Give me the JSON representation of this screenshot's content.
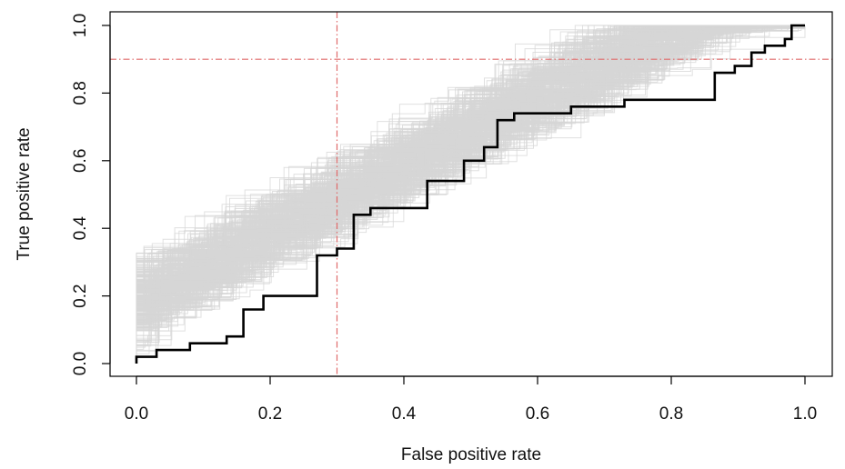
{
  "chart_data": {
    "type": "line",
    "title": "",
    "xlabel": "False positive rate",
    "ylabel": "True positive rate",
    "xlim": [
      0,
      1
    ],
    "ylim": [
      0,
      1
    ],
    "x_ticks": [
      "0.0",
      "0.2",
      "0.4",
      "0.6",
      "0.8",
      "1.0"
    ],
    "y_ticks": [
      "0.0",
      "0.2",
      "0.4",
      "0.6",
      "0.8",
      "1.0"
    ],
    "grid": false,
    "legend": "none",
    "reference_lines": [
      {
        "orientation": "vertical",
        "x": 0.3,
        "color": "#e06a6a",
        "style": "dash-dot"
      },
      {
        "orientation": "horizontal",
        "y": 0.9,
        "color": "#e06a6a",
        "style": "dash-dot"
      }
    ],
    "background_curves": {
      "description_count": 300,
      "color": "#d6d6d6",
      "style": "step",
      "note": "many bootstrap/permutation ROC step curves spanning approximately y = x to y = x + 0.25"
    },
    "series": [
      {
        "color": "#000000",
        "style": "step",
        "points": [
          [
            0.0,
            0.0
          ],
          [
            0.0,
            0.02
          ],
          [
            0.03,
            0.02
          ],
          [
            0.03,
            0.04
          ],
          [
            0.08,
            0.04
          ],
          [
            0.08,
            0.06
          ],
          [
            0.135,
            0.06
          ],
          [
            0.135,
            0.08
          ],
          [
            0.16,
            0.08
          ],
          [
            0.16,
            0.16
          ],
          [
            0.19,
            0.16
          ],
          [
            0.19,
            0.2
          ],
          [
            0.27,
            0.2
          ],
          [
            0.27,
            0.32
          ],
          [
            0.3,
            0.32
          ],
          [
            0.3,
            0.34
          ],
          [
            0.325,
            0.34
          ],
          [
            0.325,
            0.44
          ],
          [
            0.35,
            0.44
          ],
          [
            0.35,
            0.46
          ],
          [
            0.435,
            0.46
          ],
          [
            0.435,
            0.54
          ],
          [
            0.49,
            0.54
          ],
          [
            0.49,
            0.6
          ],
          [
            0.52,
            0.6
          ],
          [
            0.52,
            0.64
          ],
          [
            0.54,
            0.64
          ],
          [
            0.54,
            0.72
          ],
          [
            0.565,
            0.72
          ],
          [
            0.565,
            0.74
          ],
          [
            0.65,
            0.74
          ],
          [
            0.65,
            0.76
          ],
          [
            0.73,
            0.76
          ],
          [
            0.73,
            0.78
          ],
          [
            0.865,
            0.78
          ],
          [
            0.865,
            0.86
          ],
          [
            0.895,
            0.86
          ],
          [
            0.895,
            0.88
          ],
          [
            0.92,
            0.88
          ],
          [
            0.92,
            0.92
          ],
          [
            0.94,
            0.92
          ],
          [
            0.94,
            0.94
          ],
          [
            0.97,
            0.94
          ],
          [
            0.97,
            0.96
          ],
          [
            0.98,
            0.96
          ],
          [
            0.98,
            1.0
          ],
          [
            1.0,
            1.0
          ]
        ]
      }
    ]
  }
}
